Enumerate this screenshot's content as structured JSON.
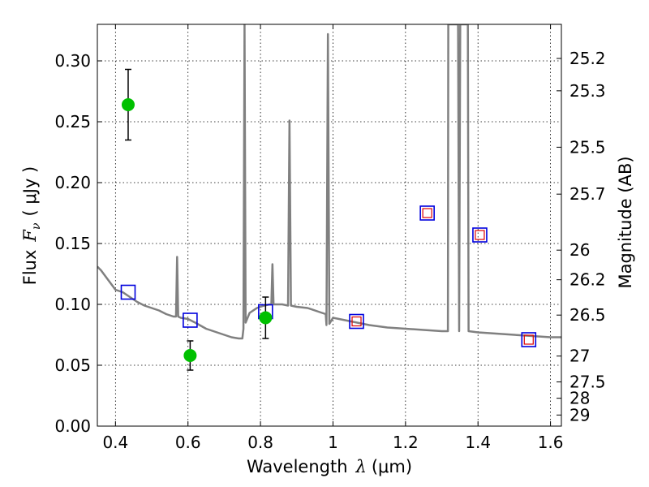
{
  "chart_data": {
    "type": "scatter",
    "xlabel_text": "Wavelength",
    "xlabel_symbol": "λ",
    "xlabel_unit": "(μm)",
    "ylabel_text": "Flux",
    "ylabel_symbol": "F",
    "ylabel_subscript": "ν",
    "ylabel_unit": "( μJy )",
    "y2label": "Magnitude (AB)",
    "xlim": [
      0.35,
      1.63
    ],
    "ylim": [
      0.0,
      0.33
    ],
    "grid": true,
    "x_ticks": [
      {
        "value": 0.4,
        "label": "0.4"
      },
      {
        "value": 0.6,
        "label": "0.6"
      },
      {
        "value": 0.8,
        "label": "0.8"
      },
      {
        "value": 1.0,
        "label": "1"
      },
      {
        "value": 1.2,
        "label": "1.2"
      },
      {
        "value": 1.4,
        "label": "1.4"
      },
      {
        "value": 1.6,
        "label": "1.6"
      }
    ],
    "y_ticks": [
      {
        "value": 0.0,
        "label": "0.00"
      },
      {
        "value": 0.05,
        "label": "0.05"
      },
      {
        "value": 0.1,
        "label": "0.10"
      },
      {
        "value": 0.15,
        "label": "0.15"
      },
      {
        "value": 0.2,
        "label": "0.20"
      },
      {
        "value": 0.25,
        "label": "0.25"
      },
      {
        "value": 0.3,
        "label": "0.30"
      }
    ],
    "y2_ticks": [
      {
        "value": 25.2,
        "label": "25.2"
      },
      {
        "value": 25.3,
        "label": "25.3"
      },
      {
        "value": 25.5,
        "label": "25.5"
      },
      {
        "value": 25.7,
        "label": "25.7"
      },
      {
        "value": 26.0,
        "label": "26"
      },
      {
        "value": 26.2,
        "label": "26.2"
      },
      {
        "value": 26.5,
        "label": "26.5"
      },
      {
        "value": 27.0,
        "label": "27"
      },
      {
        "value": 27.5,
        "label": "27.5"
      },
      {
        "value": 28.0,
        "label": "28"
      },
      {
        "value": 29.0,
        "label": "29"
      }
    ],
    "observed": {
      "color": "#00c000",
      "points": [
        {
          "x": 0.435,
          "y": 0.264,
          "err": 0.029
        },
        {
          "x": 0.606,
          "y": 0.058,
          "err": 0.012
        },
        {
          "x": 0.814,
          "y": 0.089,
          "err": 0.017
        }
      ]
    },
    "model_bands": {
      "color": "#0000dd",
      "values": [
        {
          "x": 0.435,
          "y": 0.11
        },
        {
          "x": 0.606,
          "y": 0.087
        },
        {
          "x": 0.814,
          "y": 0.094
        },
        {
          "x": 1.065,
          "y": 0.086
        },
        {
          "x": 1.26,
          "y": 0.175
        },
        {
          "x": 1.405,
          "y": 0.157
        },
        {
          "x": 1.54,
          "y": 0.071
        }
      ]
    },
    "predicted": {
      "color": "#dd0000",
      "values": [
        {
          "x": 1.065,
          "y": 0.086
        },
        {
          "x": 1.26,
          "y": 0.175
        },
        {
          "x": 1.405,
          "y": 0.157
        },
        {
          "x": 1.54,
          "y": 0.071
        }
      ]
    },
    "spectrum": {
      "color": "#808080",
      "points": [
        [
          0.35,
          0.131
        ],
        [
          0.36,
          0.128
        ],
        [
          0.37,
          0.124
        ],
        [
          0.38,
          0.12
        ],
        [
          0.39,
          0.116
        ],
        [
          0.4,
          0.112
        ],
        [
          0.42,
          0.11
        ],
        [
          0.44,
          0.106
        ],
        [
          0.46,
          0.102
        ],
        [
          0.48,
          0.099
        ],
        [
          0.5,
          0.097
        ],
        [
          0.52,
          0.095
        ],
        [
          0.54,
          0.092
        ],
        [
          0.56,
          0.09
        ],
        [
          0.567,
          0.09
        ],
        [
          0.57,
          0.139
        ],
        [
          0.573,
          0.09
        ],
        [
          0.58,
          0.089
        ],
        [
          0.6,
          0.088
        ],
        [
          0.62,
          0.085
        ],
        [
          0.65,
          0.08
        ],
        [
          0.68,
          0.077
        ],
        [
          0.7,
          0.075
        ],
        [
          0.72,
          0.073
        ],
        [
          0.74,
          0.072
        ],
        [
          0.75,
          0.072
        ],
        [
          0.753,
          0.08
        ],
        [
          0.756,
          0.33
        ],
        [
          0.759,
          0.085
        ],
        [
          0.77,
          0.093
        ],
        [
          0.79,
          0.097
        ],
        [
          0.81,
          0.099
        ],
        [
          0.825,
          0.1
        ],
        [
          0.83,
          0.1
        ],
        [
          0.833,
          0.133
        ],
        [
          0.836,
          0.1
        ],
        [
          0.86,
          0.1
        ],
        [
          0.876,
          0.099
        ],
        [
          0.88,
          0.251
        ],
        [
          0.884,
          0.099
        ],
        [
          0.9,
          0.098
        ],
        [
          0.93,
          0.097
        ],
        [
          0.96,
          0.094
        ],
        [
          0.98,
          0.092
        ],
        [
          0.982,
          0.083
        ],
        [
          0.986,
          0.322
        ],
        [
          0.99,
          0.084
        ],
        [
          1.0,
          0.089
        ],
        [
          1.05,
          0.086
        ],
        [
          1.1,
          0.083
        ],
        [
          1.15,
          0.081
        ],
        [
          1.2,
          0.08
        ],
        [
          1.25,
          0.079
        ],
        [
          1.3,
          0.078
        ],
        [
          1.317,
          0.078
        ],
        [
          1.318,
          0.33
        ],
        [
          1.32,
          0.33
        ],
        [
          1.322,
          0.33
        ],
        [
          1.345,
          0.33
        ],
        [
          1.348,
          0.078
        ],
        [
          1.351,
          0.33
        ],
        [
          1.37,
          0.33
        ],
        [
          1.372,
          0.33
        ],
        [
          1.374,
          0.078
        ],
        [
          1.4,
          0.077
        ],
        [
          1.45,
          0.076
        ],
        [
          1.5,
          0.075
        ],
        [
          1.55,
          0.074
        ],
        [
          1.6,
          0.073
        ],
        [
          1.63,
          0.073
        ]
      ]
    }
  }
}
